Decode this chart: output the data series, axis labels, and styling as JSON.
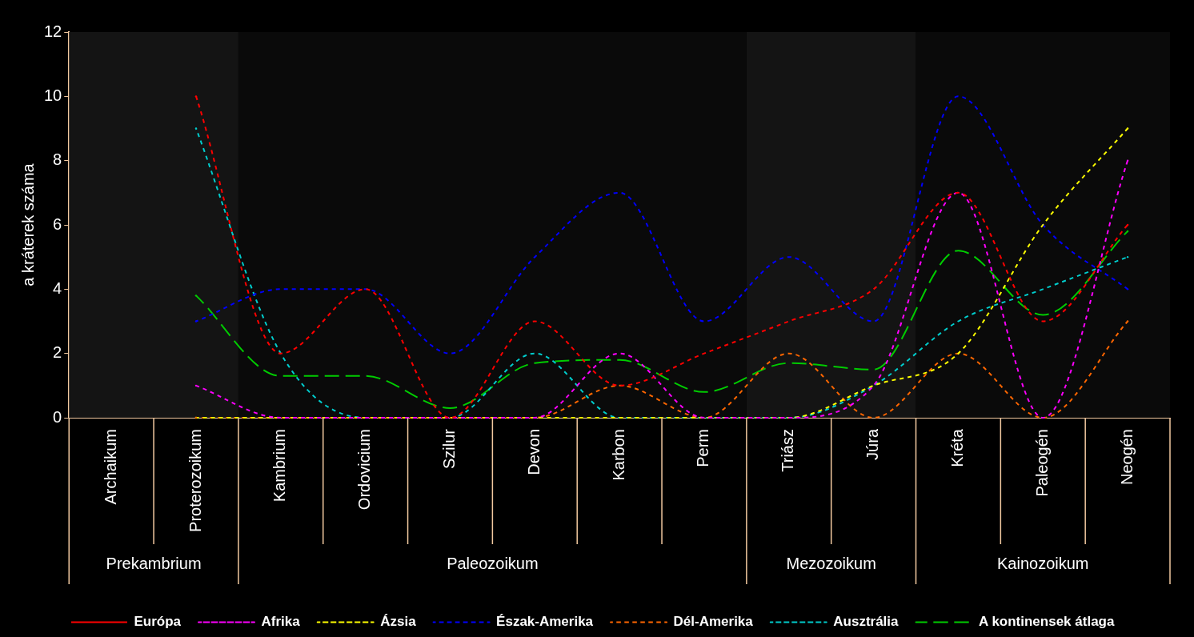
{
  "chart_data": {
    "type": "line",
    "ylabel": "a kráterek száma",
    "categories": [
      "Archaikum",
      "Proterozoikum",
      "Kambrium",
      "Ordovicium",
      "Szilur",
      "Devon",
      "Karbon",
      "Perm",
      "Triász",
      "Júra",
      "Kréta",
      "Paleogén",
      "Neogén"
    ],
    "series": [
      {
        "name": "Európa",
        "color": "#ff0000",
        "values": [
          null,
          10,
          2,
          4,
          0,
          3,
          1,
          2,
          3,
          4,
          7,
          3,
          6
        ]
      },
      {
        "name": "Afrika",
        "color": "#ff00ff",
        "values": [
          null,
          1,
          0,
          0,
          0,
          0,
          2,
          0,
          0,
          1,
          7,
          0,
          8
        ]
      },
      {
        "name": "Ázsia",
        "color": "#ffff00",
        "values": [
          null,
          0,
          0,
          0,
          0,
          0,
          0,
          0,
          0,
          1,
          2,
          6,
          9
        ]
      },
      {
        "name": "Észak-Amerika",
        "color": "#0000ff",
        "values": [
          null,
          3,
          4,
          4,
          2,
          5,
          7,
          3,
          5,
          3,
          10,
          6,
          4
        ]
      },
      {
        "name": "Dél-Amerika",
        "color": "#ff6600",
        "values": [
          null,
          0,
          0,
          0,
          0,
          0,
          1,
          0,
          2,
          0,
          2,
          0,
          3
        ]
      },
      {
        "name": "Ausztrália",
        "color": "#00cccc",
        "values": [
          null,
          9,
          2,
          0,
          0,
          2,
          0,
          0,
          0,
          1,
          3,
          4,
          5
        ]
      },
      {
        "name": "A kontinensek átlaga",
        "color": "#00cc00",
        "line_style": "dashed",
        "values": [
          null,
          3.8,
          1.3,
          1.3,
          0.3,
          1.7,
          1.8,
          0.8,
          1.7,
          1.5,
          5.2,
          3.2,
          5.8
        ]
      }
    ],
    "bands": [
      {
        "axis": "x",
        "from": "Archaikum",
        "to": "Proterozoikum",
        "label": "Prekambrium",
        "color": "#141414"
      },
      {
        "axis": "x",
        "from": "Kambrium",
        "to": "Perm",
        "label": "Paleozoikum",
        "color": "#0a0a0a"
      },
      {
        "axis": "x",
        "from": "Triász",
        "to": "Júra",
        "label": "Mezozoikum",
        "color": "#141414"
      },
      {
        "axis": "x",
        "from": "Kréta",
        "to": "Neogén",
        "label": "Kainozoikum",
        "color": "#0a0a0a"
      }
    ],
    "ylim": [
      0,
      12
    ],
    "yticks": [
      0,
      2,
      4,
      6,
      8,
      10,
      12
    ],
    "grid": false,
    "legend": "bottom",
    "line_style": "dashed"
  }
}
